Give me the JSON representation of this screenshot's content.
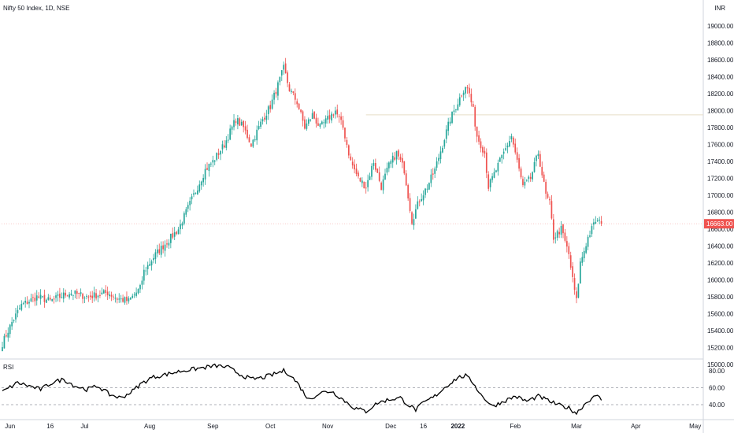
{
  "chart_title": "Nifty 50 Index, 1D, NSE",
  "currency": "INR",
  "rsi_label": "RSI",
  "price_label": "16663.00",
  "colors": {
    "up": "#26a69a",
    "down": "#ef5350",
    "resistance": "#e8ddc8",
    "rsi_line": "#000000",
    "price_box": "#ef5350"
  },
  "chart_data": [
    {
      "type": "candlestick",
      "title": "Nifty 50 Index, 1D, NSE",
      "ylabel": "INR",
      "ylim": [
        14900,
        19000
      ],
      "y_ticks": [
        "19000.00",
        "18800.00",
        "18600.00",
        "18400.00",
        "18200.00",
        "18000.00",
        "17800.00",
        "17600.00",
        "17400.00",
        "17200.00",
        "17000.00",
        "16800.00",
        "16600.00",
        "16400.00",
        "16200.00",
        "16000.00",
        "15800.00",
        "15600.00",
        "15400.00",
        "15200.00",
        "15000.00"
      ],
      "x_ticks": [
        "Jun",
        "16",
        "Jul",
        "Aug",
        "Sep",
        "Oct",
        "Nov",
        "Dec",
        "16",
        "2022",
        "Feb",
        "Mar",
        "Apr",
        "May"
      ],
      "resistance_level": 17950,
      "last_price": 16663,
      "waypoints": [
        [
          0,
          15250
        ],
        [
          5,
          15500
        ],
        [
          10,
          15700
        ],
        [
          18,
          15800
        ],
        [
          25,
          15750
        ],
        [
          35,
          15850
        ],
        [
          45,
          15800
        ],
        [
          55,
          15850
        ],
        [
          60,
          15780
        ],
        [
          66,
          15750
        ],
        [
          72,
          15900
        ],
        [
          74,
          16100
        ],
        [
          80,
          16300
        ],
        [
          88,
          16500
        ],
        [
          92,
          16600
        ],
        [
          96,
          16800
        ],
        [
          102,
          17100
        ],
        [
          106,
          17300
        ],
        [
          110,
          17400
        ],
        [
          116,
          17600
        ],
        [
          122,
          17900
        ],
        [
          126,
          17800
        ],
        [
          130,
          17600
        ],
        [
          136,
          17900
        ],
        [
          140,
          18050
        ],
        [
          144,
          18300
        ],
        [
          147,
          18500
        ],
        [
          150,
          18250
        ],
        [
          154,
          18100
        ],
        [
          158,
          17800
        ],
        [
          162,
          17950
        ],
        [
          166,
          17800
        ],
        [
          170,
          17900
        ],
        [
          174,
          18000
        ],
        [
          178,
          17800
        ],
        [
          182,
          17400
        ],
        [
          186,
          17200
        ],
        [
          190,
          17100
        ],
        [
          194,
          17400
        ],
        [
          198,
          17100
        ],
        [
          202,
          17350
        ],
        [
          206,
          17500
        ],
        [
          210,
          17300
        ],
        [
          212,
          17000
        ],
        [
          214,
          16700
        ],
        [
          218,
          16950
        ],
        [
          222,
          17100
        ],
        [
          226,
          17300
        ],
        [
          230,
          17600
        ],
        [
          234,
          17900
        ],
        [
          238,
          18100
        ],
        [
          240,
          18200
        ],
        [
          242,
          18300
        ],
        [
          244,
          18200
        ],
        [
          246,
          18000
        ],
        [
          248,
          17700
        ],
        [
          252,
          17500
        ],
        [
          254,
          17100
        ],
        [
          258,
          17300
        ],
        [
          262,
          17500
        ],
        [
          266,
          17700
        ],
        [
          270,
          17300
        ],
        [
          272,
          17100
        ],
        [
          276,
          17200
        ],
        [
          280,
          17500
        ],
        [
          284,
          17000
        ],
        [
          286,
          16900
        ],
        [
          288,
          16500
        ],
        [
          292,
          16600
        ],
        [
          296,
          16300
        ],
        [
          298,
          16000
        ],
        [
          300,
          15750
        ],
        [
          302,
          16200
        ],
        [
          306,
          16500
        ],
        [
          310,
          16700
        ],
        [
          313,
          16663
        ]
      ]
    },
    {
      "type": "line",
      "title": "RSI",
      "ylim": [
        20,
        90
      ],
      "y_ticks": [
        "80.00",
        "60.00",
        "40.00"
      ],
      "levels": [
        60,
        40
      ],
      "waypoints": [
        [
          0,
          55
        ],
        [
          8,
          66
        ],
        [
          14,
          62
        ],
        [
          20,
          58
        ],
        [
          26,
          66
        ],
        [
          32,
          70
        ],
        [
          38,
          62
        ],
        [
          44,
          58
        ],
        [
          50,
          62
        ],
        [
          56,
          52
        ],
        [
          62,
          48
        ],
        [
          68,
          56
        ],
        [
          72,
          64
        ],
        [
          78,
          72
        ],
        [
          86,
          76
        ],
        [
          94,
          80
        ],
        [
          100,
          82
        ],
        [
          106,
          84
        ],
        [
          112,
          86
        ],
        [
          118,
          84
        ],
        [
          124,
          76
        ],
        [
          130,
          70
        ],
        [
          136,
          72
        ],
        [
          142,
          76
        ],
        [
          147,
          80
        ],
        [
          150,
          76
        ],
        [
          154,
          66
        ],
        [
          160,
          46
        ],
        [
          166,
          54
        ],
        [
          172,
          56
        ],
        [
          178,
          46
        ],
        [
          184,
          36
        ],
        [
          190,
          32
        ],
        [
          196,
          42
        ],
        [
          202,
          46
        ],
        [
          208,
          48
        ],
        [
          212,
          40
        ],
        [
          216,
          34
        ],
        [
          220,
          42
        ],
        [
          226,
          50
        ],
        [
          232,
          62
        ],
        [
          238,
          72
        ],
        [
          242,
          74
        ],
        [
          246,
          66
        ],
        [
          250,
          52
        ],
        [
          256,
          38
        ],
        [
          262,
          44
        ],
        [
          268,
          50
        ],
        [
          274,
          44
        ],
        [
          280,
          50
        ],
        [
          286,
          44
        ],
        [
          290,
          40
        ],
        [
          296,
          36
        ],
        [
          300,
          30
        ],
        [
          304,
          40
        ],
        [
          308,
          48
        ],
        [
          312,
          50
        ],
        [
          313,
          46
        ]
      ]
    }
  ]
}
